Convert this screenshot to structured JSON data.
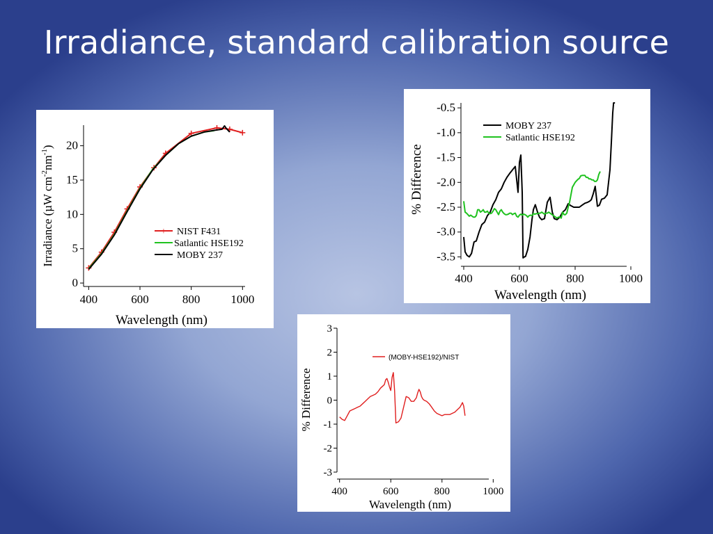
{
  "slide": {
    "title": "Irradiance, standard calibration source"
  },
  "chart_data": [
    {
      "id": "irradiance",
      "type": "line",
      "xlabel": "Wavelength (nm)",
      "ylabel_parts": {
        "pre": "Irradiance (",
        "mu": "µ",
        "w": "W cm",
        "sup1": "-2",
        "nm": "nm",
        "sup2": "-1",
        "post": ")"
      },
      "xlim": [
        380,
        1010
      ],
      "ylim": [
        -0.5,
        23
      ],
      "xticks": [
        {
          "v": 400,
          "label": "400"
        },
        {
          "v": 600,
          "label": "600"
        },
        {
          "v": 800,
          "label": "800"
        },
        {
          "v": 1000,
          "label": "1000"
        }
      ],
      "yticks": [
        {
          "v": 0,
          "label": "0"
        },
        {
          "v": 5,
          "label": "5"
        },
        {
          "v": 10,
          "label": "10"
        },
        {
          "v": 15,
          "label": "15"
        },
        {
          "v": 20,
          "label": "20"
        }
      ],
      "legend_position": "center-right",
      "series": [
        {
          "name": "NIST F431",
          "color": "#e01e1e",
          "markers": true,
          "x": [
            400,
            450,
            500,
            550,
            600,
            654.6,
            700,
            800,
            900,
            950,
            1000
          ],
          "y": [
            2.2,
            4.5,
            7.4,
            10.8,
            14.0,
            16.8,
            18.9,
            21.8,
            22.6,
            22.4,
            21.9
          ]
        },
        {
          "name": "Satlantic HSE192",
          "color": "#1fc21f",
          "markers": false,
          "x": [
            400,
            450,
            500,
            550,
            600,
            650,
            700,
            750,
            800,
            850,
            890
          ],
          "y": [
            2.1,
            4.3,
            7.1,
            10.5,
            13.8,
            16.6,
            18.6,
            20.3,
            21.4,
            22.0,
            22.2
          ]
        },
        {
          "name": "MOBY 237",
          "color": "#000000",
          "markers": false,
          "x": [
            400,
            450,
            500,
            550,
            600,
            650,
            700,
            750,
            800,
            850,
            900,
            920,
            930,
            935,
            940,
            950
          ],
          "y": [
            2.0,
            4.2,
            7.0,
            10.4,
            13.7,
            16.5,
            18.6,
            20.3,
            21.4,
            22.0,
            22.3,
            22.4,
            22.9,
            22.6,
            22.4,
            22.0
          ]
        }
      ]
    },
    {
      "id": "pct-difference-top",
      "type": "line",
      "xlabel": "Wavelength (nm)",
      "ylabel": "% Difference",
      "xlim": [
        390,
        1010
      ],
      "ylim": [
        -3.55,
        -0.4
      ],
      "xticks": [
        {
          "v": 400,
          "label": "400"
        },
        {
          "v": 600,
          "label": "600"
        },
        {
          "v": 800,
          "label": "800"
        },
        {
          "v": 1000,
          "label": "1000"
        }
      ],
      "yticks": [
        {
          "v": -0.5,
          "label": "-0.5"
        },
        {
          "v": -1.0,
          "label": "-1.0"
        },
        {
          "v": -1.5,
          "label": "-1.5"
        },
        {
          "v": -2.0,
          "label": "-2.0"
        },
        {
          "v": -2.5,
          "label": "-2.5"
        },
        {
          "v": -3.0,
          "label": "-3.0"
        },
        {
          "v": -3.5,
          "label": "-3.5"
        }
      ],
      "legend_position": "top-center",
      "series": [
        {
          "name": "MOBY 237",
          "color": "#000000",
          "x": [
            400,
            405,
            412,
            420,
            428,
            437,
            445,
            455,
            465,
            475,
            485,
            495,
            505,
            515,
            525,
            535,
            545,
            555,
            565,
            575,
            585,
            595,
            600,
            605,
            610,
            613,
            618,
            622,
            630,
            638,
            645,
            650,
            657,
            665,
            672,
            680,
            690,
            700,
            710,
            718,
            725,
            735,
            745,
            755,
            765,
            775,
            785,
            795,
            805,
            815,
            825,
            835,
            845,
            852,
            858,
            865,
            872,
            880,
            887,
            895,
            905,
            915,
            925,
            930,
            935,
            938,
            940,
            943
          ],
          "y": [
            -3.1,
            -3.4,
            -3.47,
            -3.5,
            -3.43,
            -3.2,
            -3.18,
            -3.0,
            -2.85,
            -2.8,
            -2.67,
            -2.6,
            -2.45,
            -2.35,
            -2.2,
            -2.13,
            -2.0,
            -1.9,
            -1.82,
            -1.75,
            -1.68,
            -2.2,
            -1.6,
            -1.45,
            -2.2,
            -3.52,
            -3.5,
            -3.49,
            -3.35,
            -3.1,
            -2.75,
            -2.55,
            -2.45,
            -2.6,
            -2.7,
            -2.75,
            -2.73,
            -2.4,
            -2.3,
            -2.6,
            -2.73,
            -2.75,
            -2.7,
            -2.6,
            -2.55,
            -2.43,
            -2.47,
            -2.5,
            -2.5,
            -2.5,
            -2.46,
            -2.42,
            -2.4,
            -2.38,
            -2.35,
            -2.23,
            -2.08,
            -2.48,
            -2.46,
            -2.34,
            -2.32,
            -2.25,
            -1.75,
            -1.2,
            -0.6,
            -0.4,
            -0.4,
            -0.4
          ]
        },
        {
          "name": "Satlantic HSE192",
          "color": "#1fc21f",
          "x": [
            400,
            405,
            410,
            415,
            420,
            425,
            430,
            435,
            440,
            445,
            450,
            455,
            460,
            465,
            470,
            475,
            480,
            485,
            490,
            495,
            500,
            505,
            510,
            515,
            520,
            525,
            530,
            535,
            540,
            545,
            550,
            555,
            560,
            565,
            570,
            575,
            580,
            585,
            590,
            595,
            600,
            605,
            610,
            615,
            620,
            625,
            630,
            635,
            640,
            645,
            650,
            655,
            660,
            665,
            670,
            675,
            680,
            685,
            690,
            695,
            700,
            705,
            710,
            715,
            720,
            725,
            730,
            735,
            740,
            745,
            750,
            755,
            760,
            765,
            770,
            775,
            780,
            785,
            790,
            795,
            800,
            805,
            810,
            815,
            820,
            825,
            830,
            835,
            840,
            845,
            850,
            855,
            860,
            865,
            870,
            875,
            880,
            885,
            890
          ],
          "y": [
            -2.38,
            -2.6,
            -2.62,
            -2.65,
            -2.68,
            -2.66,
            -2.68,
            -2.7,
            -2.7,
            -2.67,
            -2.55,
            -2.55,
            -2.6,
            -2.58,
            -2.55,
            -2.6,
            -2.6,
            -2.58,
            -2.62,
            -2.63,
            -2.62,
            -2.58,
            -2.53,
            -2.55,
            -2.6,
            -2.65,
            -2.58,
            -2.55,
            -2.6,
            -2.63,
            -2.65,
            -2.65,
            -2.64,
            -2.62,
            -2.62,
            -2.65,
            -2.63,
            -2.62,
            -2.68,
            -2.7,
            -2.66,
            -2.64,
            -2.66,
            -2.64,
            -2.65,
            -2.67,
            -2.7,
            -2.67,
            -2.66,
            -2.67,
            -2.63,
            -2.64,
            -2.63,
            -2.63,
            -2.62,
            -2.62,
            -2.6,
            -2.62,
            -2.64,
            -2.62,
            -2.62,
            -2.6,
            -2.62,
            -2.64,
            -2.66,
            -2.68,
            -2.7,
            -2.72,
            -2.7,
            -2.7,
            -2.72,
            -2.6,
            -2.65,
            -2.65,
            -2.62,
            -2.5,
            -2.4,
            -2.25,
            -2.1,
            -2.05,
            -2.0,
            -1.97,
            -1.94,
            -1.92,
            -1.87,
            -1.86,
            -1.86,
            -1.86,
            -1.9,
            -1.9,
            -1.93,
            -1.93,
            -1.95,
            -1.95,
            -1.98,
            -1.98,
            -1.95,
            -1.84,
            -1.78
          ]
        }
      ]
    },
    {
      "id": "pct-difference-bottom",
      "type": "line",
      "xlabel": "Wavelength (nm)",
      "ylabel": "% Difference",
      "xlim": [
        390,
        1010
      ],
      "ylim": [
        -3,
        3
      ],
      "xticks": [
        {
          "v": 400,
          "label": "400"
        },
        {
          "v": 600,
          "label": "600"
        },
        {
          "v": 800,
          "label": "800"
        },
        {
          "v": 1000,
          "label": "1000"
        }
      ],
      "yticks": [
        {
          "v": -3,
          "label": "-3"
        },
        {
          "v": -2,
          "label": "-2"
        },
        {
          "v": -1,
          "label": "-1"
        },
        {
          "v": 0,
          "label": "0"
        },
        {
          "v": 1,
          "label": "1"
        },
        {
          "v": 2,
          "label": "2"
        },
        {
          "v": 3,
          "label": "3"
        }
      ],
      "legend_position": "top-right",
      "series": [
        {
          "name": "(MOBY-HSE192)/NIST",
          "color": "#e01e1e",
          "x": [
            400,
            410,
            420,
            430,
            440,
            450,
            460,
            470,
            480,
            490,
            500,
            510,
            520,
            530,
            540,
            550,
            560,
            570,
            575,
            580,
            585,
            590,
            595,
            600,
            605,
            610,
            615,
            620,
            630,
            640,
            650,
            660,
            670,
            680,
            690,
            700,
            705,
            710,
            715,
            720,
            725,
            730,
            740,
            750,
            760,
            770,
            780,
            790,
            800,
            810,
            820,
            830,
            840,
            850,
            860,
            870,
            875,
            880,
            885,
            890
          ],
          "y": [
            -0.7,
            -0.8,
            -0.85,
            -0.65,
            -0.45,
            -0.4,
            -0.35,
            -0.3,
            -0.25,
            -0.15,
            -0.05,
            0.05,
            0.15,
            0.2,
            0.25,
            0.35,
            0.5,
            0.6,
            0.65,
            0.85,
            0.9,
            0.75,
            0.55,
            0.4,
            0.95,
            1.15,
            0.4,
            -0.95,
            -0.9,
            -0.75,
            -0.3,
            0.15,
            0.1,
            -0.05,
            -0.05,
            0.1,
            0.3,
            0.45,
            0.35,
            0.15,
            0.05,
            0.0,
            -0.05,
            -0.15,
            -0.3,
            -0.45,
            -0.55,
            -0.6,
            -0.65,
            -0.6,
            -0.6,
            -0.6,
            -0.55,
            -0.5,
            -0.4,
            -0.3,
            -0.2,
            -0.1,
            -0.25,
            -0.65
          ]
        }
      ]
    }
  ]
}
